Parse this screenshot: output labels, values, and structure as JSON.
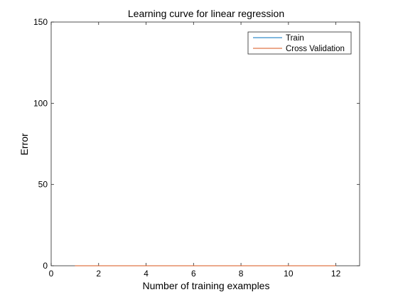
{
  "chart_data": {
    "type": "line",
    "title": "Learning curve for linear regression",
    "xlabel": "Number of training examples",
    "ylabel": "Error",
    "xlim": [
      0,
      13
    ],
    "ylim": [
      0,
      150
    ],
    "x_ticks": [
      0,
      2,
      4,
      6,
      8,
      10,
      12
    ],
    "y_ticks": [
      0,
      50,
      100,
      150
    ],
    "grid": false,
    "legend_position": "top-right",
    "x": [
      1,
      2,
      3,
      4,
      5,
      6,
      7,
      8,
      9,
      10,
      11,
      12
    ],
    "series": [
      {
        "name": "Train",
        "color": "#0072BD",
        "values": [
          0,
          0,
          0,
          0,
          0,
          0,
          0,
          0,
          0,
          0,
          0,
          0
        ]
      },
      {
        "name": "Cross Validation",
        "color": "#D95319",
        "values": [
          0,
          0,
          0,
          0,
          0,
          0,
          0,
          0,
          0,
          0,
          0,
          0
        ]
      }
    ]
  }
}
